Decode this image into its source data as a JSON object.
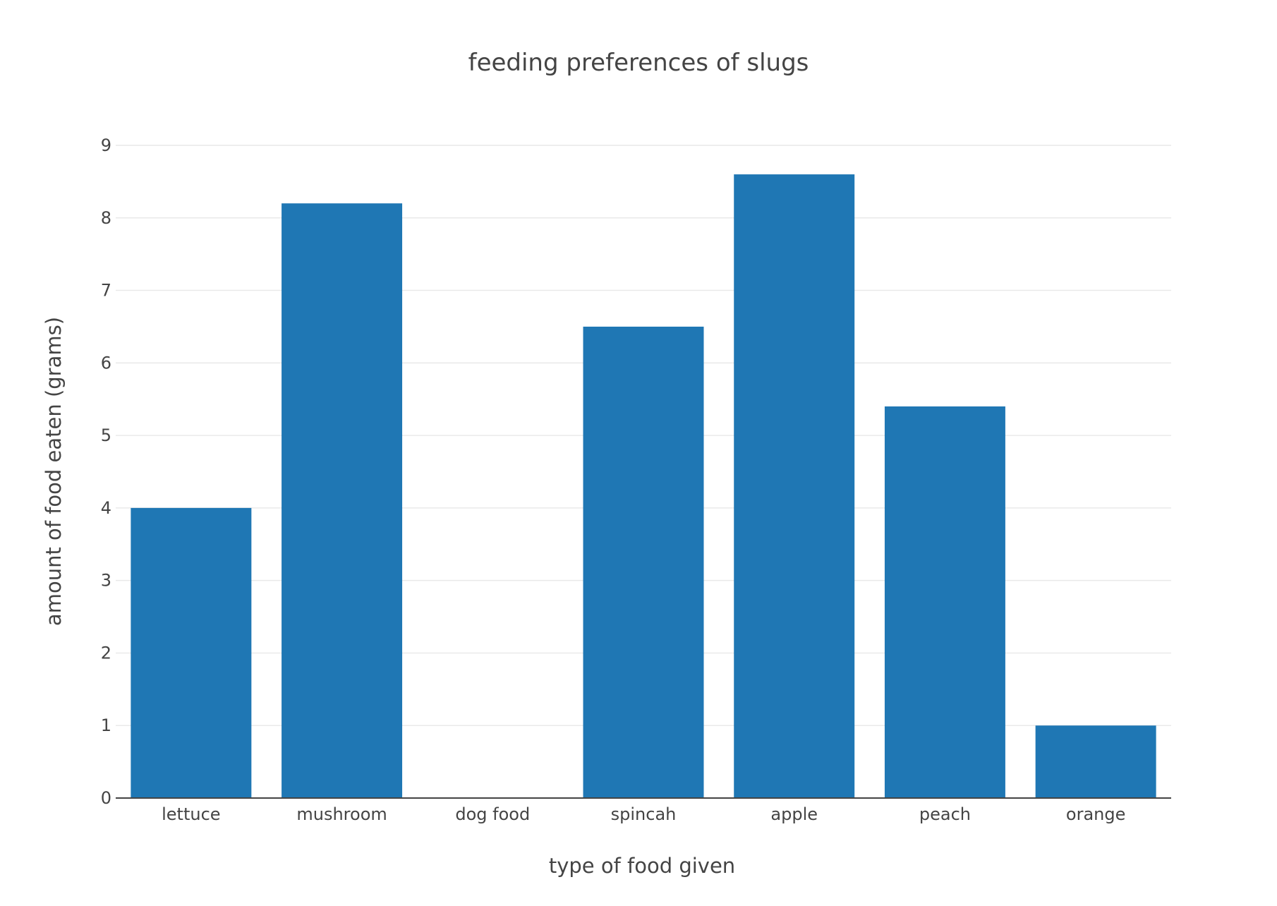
{
  "chart_data": {
    "type": "bar",
    "title": "feeding preferences of slugs",
    "xlabel": "type of food given",
    "ylabel": "amount of food eaten (grams)",
    "categories": [
      "lettuce",
      "mushroom",
      "dog food",
      "spincah",
      "apple",
      "peach",
      "orange"
    ],
    "values": [
      4,
      8.2,
      0,
      6.5,
      8.6,
      5.4,
      1
    ],
    "ylim": [
      0,
      9
    ],
    "yticks": [
      "0",
      "1",
      "2",
      "3",
      "4",
      "5",
      "6",
      "7",
      "8",
      "9"
    ],
    "grid": true,
    "bar_color": "#1f77b4"
  }
}
